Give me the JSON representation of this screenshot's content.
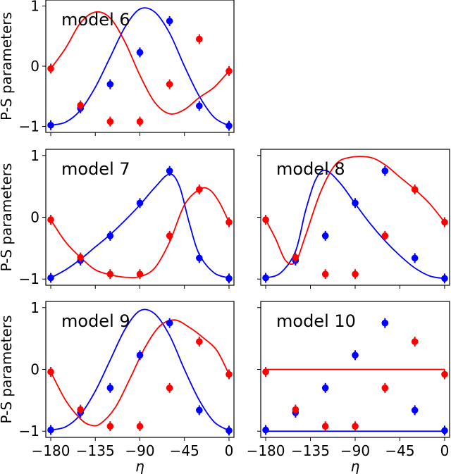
{
  "chart_data": [
    {
      "type": "scatter",
      "label": "model 6",
      "x": [
        -180,
        -150,
        -120,
        -90,
        -60,
        -30,
        0
      ],
      "xlim": [
        -185,
        5
      ],
      "ylim": [
        -1.1,
        1.1
      ],
      "xticks": [
        "-180",
        "-135",
        "-90",
        "-45",
        "0"
      ],
      "yticks": [
        "−1",
        "0",
        "1"
      ],
      "ylabel": "P-S parameters",
      "xlabel": "",
      "series": [
        {
          "color": "#0000ff",
          "points": [
            -0.98,
            -0.7,
            -0.3,
            0.23,
            0.75,
            -0.66,
            -0.99
          ],
          "curve": [
            [
              -180,
              -0.98
            ],
            [
              -165,
              -0.93
            ],
            [
              -150,
              -0.73
            ],
            [
              -135,
              -0.35
            ],
            [
              -120,
              0.15
            ],
            [
              -105,
              0.65
            ],
            [
              -90,
              0.95
            ],
            [
              -75,
              0.9
            ],
            [
              -60,
              0.55
            ],
            [
              -45,
              0.0
            ],
            [
              -30,
              -0.5
            ],
            [
              -15,
              -0.85
            ],
            [
              0,
              -0.99
            ]
          ]
        },
        {
          "color": "#ff0000",
          "points": [
            -0.04,
            -0.65,
            -0.92,
            -0.92,
            -0.3,
            0.45,
            -0.08
          ],
          "curve": [
            [
              -180,
              -0.04
            ],
            [
              -165,
              0.3
            ],
            [
              -150,
              0.72
            ],
            [
              -135,
              0.9
            ],
            [
              -120,
              0.8
            ],
            [
              -105,
              0.4
            ],
            [
              -90,
              -0.15
            ],
            [
              -75,
              -0.6
            ],
            [
              -60,
              -0.79
            ],
            [
              -45,
              -0.72
            ],
            [
              -30,
              -0.52
            ],
            [
              -15,
              -0.35
            ],
            [
              0,
              -0.08
            ]
          ]
        }
      ]
    },
    {
      "type": "scatter",
      "label": "model 7",
      "x": [
        -180,
        -150,
        -120,
        -90,
        -60,
        -30,
        0
      ],
      "xlim": [
        -185,
        5
      ],
      "ylim": [
        -1.1,
        1.1
      ],
      "xticks": [
        "-180",
        "-135",
        "-90",
        "-45",
        "0"
      ],
      "yticks": [
        "−1",
        "0",
        "1"
      ],
      "ylabel": "P-S parameters",
      "xlabel": "",
      "series": [
        {
          "color": "#0000ff",
          "points": [
            -0.98,
            -0.7,
            -0.3,
            0.23,
            0.75,
            -0.66,
            -0.99
          ],
          "curve": [
            [
              -180,
              -0.98
            ],
            [
              -165,
              -0.85
            ],
            [
              -150,
              -0.68
            ],
            [
              -135,
              -0.48
            ],
            [
              -120,
              -0.28
            ],
            [
              -105,
              -0.05
            ],
            [
              -90,
              0.2
            ],
            [
              -75,
              0.48
            ],
            [
              -60,
              0.7
            ],
            [
              -50,
              0.5
            ],
            [
              -40,
              -0.1
            ],
            [
              -30,
              -0.6
            ],
            [
              -15,
              -0.9
            ],
            [
              0,
              -0.98
            ]
          ]
        },
        {
          "color": "#ff0000",
          "points": [
            -0.04,
            -0.65,
            -0.92,
            -0.92,
            -0.3,
            0.45,
            -0.08
          ],
          "curve": [
            [
              -180,
              -0.04
            ],
            [
              -165,
              -0.4
            ],
            [
              -150,
              -0.65
            ],
            [
              -135,
              -0.85
            ],
            [
              -120,
              -0.93
            ],
            [
              -105,
              -0.97
            ],
            [
              -90,
              -0.96
            ],
            [
              -75,
              -0.82
            ],
            [
              -60,
              -0.4
            ],
            [
              -45,
              0.2
            ],
            [
              -30,
              0.45
            ],
            [
              -20,
              0.45
            ],
            [
              -10,
              0.25
            ],
            [
              0,
              -0.08
            ]
          ]
        }
      ]
    },
    {
      "type": "scatter",
      "label": "model 8",
      "x": [
        -180,
        -150,
        -120,
        -90,
        -60,
        -30,
        0
      ],
      "xlim": [
        -185,
        5
      ],
      "ylim": [
        -1.1,
        1.1
      ],
      "xticks": [
        "-180",
        "-135",
        "-90",
        "-45",
        "0"
      ],
      "yticks": [
        "−1",
        "0",
        "1"
      ],
      "ylabel": "",
      "xlabel": "",
      "series": [
        {
          "color": "#0000ff",
          "points": [
            -0.98,
            -0.7,
            -0.3,
            0.23,
            0.75,
            -0.66,
            -0.99
          ],
          "curve": [
            [
              -180,
              -0.98
            ],
            [
              -165,
              -0.9
            ],
            [
              -150,
              -0.55
            ],
            [
              -140,
              0.1
            ],
            [
              -130,
              0.6
            ],
            [
              -120,
              0.76
            ],
            [
              -105,
              0.55
            ],
            [
              -90,
              0.22
            ],
            [
              -75,
              -0.1
            ],
            [
              -60,
              -0.38
            ],
            [
              -45,
              -0.62
            ],
            [
              -30,
              -0.82
            ],
            [
              -15,
              -0.95
            ],
            [
              0,
              -0.99
            ]
          ]
        },
        {
          "color": "#ff0000",
          "points": [
            -0.04,
            -0.65,
            -0.92,
            -0.92,
            -0.3,
            0.45,
            -0.08
          ],
          "curve": [
            [
              -180,
              -0.04
            ],
            [
              -170,
              -0.35
            ],
            [
              -160,
              -0.7
            ],
            [
              -150,
              -0.72
            ],
            [
              -140,
              -0.3
            ],
            [
              -125,
              0.4
            ],
            [
              -110,
              0.85
            ],
            [
              -95,
              0.97
            ],
            [
              -75,
              0.97
            ],
            [
              -60,
              0.85
            ],
            [
              -45,
              0.65
            ],
            [
              -30,
              0.45
            ],
            [
              -15,
              0.22
            ],
            [
              0,
              -0.08
            ]
          ]
        }
      ]
    },
    {
      "type": "scatter",
      "label": "model 9",
      "x": [
        -180,
        -150,
        -120,
        -90,
        -60,
        -30,
        0
      ],
      "xlim": [
        -185,
        5
      ],
      "ylim": [
        -1.1,
        1.1
      ],
      "xticks": [
        "-180",
        "-135",
        "-90",
        "-45",
        "0"
      ],
      "yticks": [
        "−1",
        "0",
        "1"
      ],
      "ylabel": "P-S parameters",
      "xlabel": "η",
      "series": [
        {
          "color": "#0000ff",
          "points": [
            -0.98,
            -0.7,
            -0.3,
            0.23,
            0.75,
            -0.66,
            -0.99
          ],
          "curve": [
            [
              -180,
              -0.98
            ],
            [
              -165,
              -0.93
            ],
            [
              -150,
              -0.73
            ],
            [
              -135,
              -0.35
            ],
            [
              -120,
              0.15
            ],
            [
              -105,
              0.65
            ],
            [
              -90,
              0.95
            ],
            [
              -75,
              0.9
            ],
            [
              -60,
              0.55
            ],
            [
              -45,
              0.0
            ],
            [
              -30,
              -0.5
            ],
            [
              -15,
              -0.85
            ],
            [
              0,
              -0.99
            ]
          ]
        },
        {
          "color": "#ff0000",
          "points": [
            -0.04,
            -0.65,
            -0.92,
            -0.92,
            -0.3,
            0.45,
            -0.08
          ],
          "curve": [
            [
              -180,
              -0.04
            ],
            [
              -165,
              -0.5
            ],
            [
              -150,
              -0.8
            ],
            [
              -140,
              -0.9
            ],
            [
              -130,
              -0.88
            ],
            [
              -115,
              -0.62
            ],
            [
              -100,
              -0.15
            ],
            [
              -85,
              0.35
            ],
            [
              -70,
              0.7
            ],
            [
              -55,
              0.8
            ],
            [
              -40,
              0.68
            ],
            [
              -25,
              0.5
            ],
            [
              -12,
              0.3
            ],
            [
              0,
              -0.08
            ]
          ]
        }
      ]
    },
    {
      "type": "scatter",
      "label": "model 10",
      "x": [
        -180,
        -150,
        -120,
        -90,
        -60,
        -30,
        0
      ],
      "xlim": [
        -185,
        5
      ],
      "ylim": [
        -1.1,
        1.1
      ],
      "xticks": [
        "-180",
        "-135",
        "-90",
        "-45",
        "0"
      ],
      "yticks": [
        "−1",
        "0",
        "1"
      ],
      "ylabel": "",
      "xlabel": "η",
      "series": [
        {
          "color": "#0000ff",
          "points": [
            -0.98,
            -0.7,
            -0.3,
            0.23,
            0.75,
            -0.66,
            -0.99
          ],
          "curve": [
            [
              -180,
              -1.0
            ],
            [
              0,
              -1.0
            ]
          ]
        },
        {
          "color": "#ff0000",
          "points": [
            -0.04,
            -0.65,
            -0.92,
            -0.92,
            -0.3,
            0.45,
            -0.08
          ],
          "curve": [
            [
              -180,
              0.0
            ],
            [
              0,
              0.0
            ]
          ]
        }
      ]
    }
  ]
}
